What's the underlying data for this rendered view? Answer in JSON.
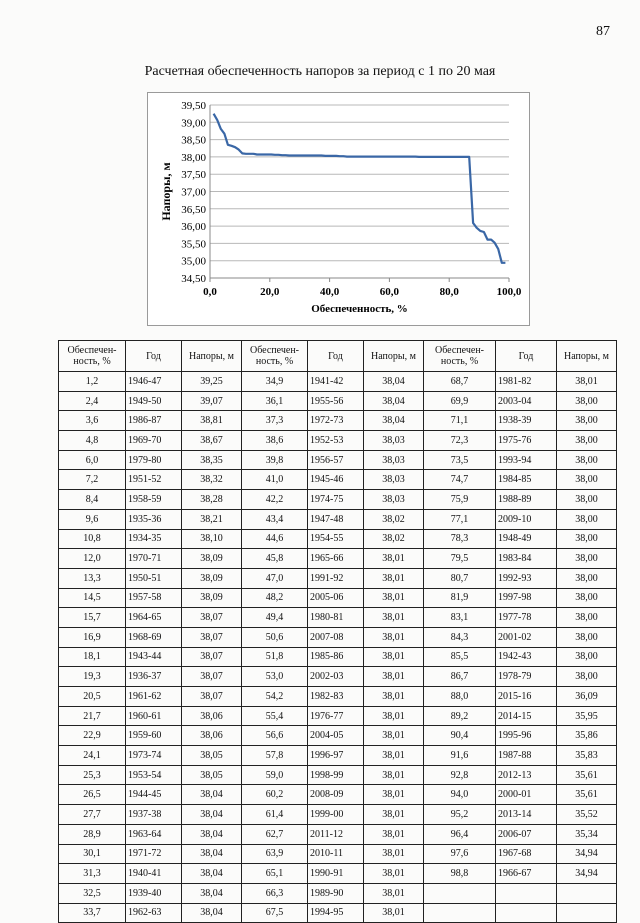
{
  "page": {
    "number": "87"
  },
  "chart_data": {
    "type": "line",
    "title": "Расчетная обеспеченность напоров за период с 1 по 20 мая",
    "xlabel": "Обеспеченность, %",
    "ylabel": "Напоры, м",
    "xlim": [
      0,
      100
    ],
    "ylim": [
      34.5,
      39.5
    ],
    "x_ticks": [
      "0,0",
      "20,0",
      "40,0",
      "60,0",
      "80,0",
      "100,0"
    ],
    "y_ticks": [
      "34,50",
      "35,00",
      "35,50",
      "36,00",
      "36,50",
      "37,00",
      "37,50",
      "38,00",
      "38,50",
      "39,00",
      "39,50"
    ],
    "grid": "horizontal",
    "color": "#3a67a6",
    "series": [
      {
        "points": [
          [
            1.2,
            39.25
          ],
          [
            2.4,
            39.07
          ],
          [
            3.6,
            38.81
          ],
          [
            4.8,
            38.67
          ],
          [
            6.0,
            38.35
          ],
          [
            7.2,
            38.32
          ],
          [
            8.4,
            38.28
          ],
          [
            9.6,
            38.21
          ],
          [
            10.8,
            38.1
          ],
          [
            12.0,
            38.09
          ],
          [
            13.3,
            38.09
          ],
          [
            14.5,
            38.09
          ],
          [
            15.7,
            38.07
          ],
          [
            16.9,
            38.07
          ],
          [
            18.1,
            38.07
          ],
          [
            19.3,
            38.07
          ],
          [
            20.5,
            38.07
          ],
          [
            21.7,
            38.06
          ],
          [
            22.9,
            38.06
          ],
          [
            24.1,
            38.05
          ],
          [
            25.3,
            38.05
          ],
          [
            26.5,
            38.04
          ],
          [
            27.7,
            38.04
          ],
          [
            28.9,
            38.04
          ],
          [
            30.1,
            38.04
          ],
          [
            31.3,
            38.04
          ],
          [
            32.5,
            38.04
          ],
          [
            33.7,
            38.04
          ],
          [
            34.9,
            38.04
          ],
          [
            36.1,
            38.04
          ],
          [
            37.3,
            38.04
          ],
          [
            38.6,
            38.03
          ],
          [
            39.8,
            38.03
          ],
          [
            41.0,
            38.03
          ],
          [
            42.2,
            38.03
          ],
          [
            43.4,
            38.02
          ],
          [
            44.6,
            38.02
          ],
          [
            45.8,
            38.01
          ],
          [
            47.0,
            38.01
          ],
          [
            48.2,
            38.01
          ],
          [
            49.4,
            38.01
          ],
          [
            50.6,
            38.01
          ],
          [
            51.8,
            38.01
          ],
          [
            53.0,
            38.01
          ],
          [
            54.2,
            38.01
          ],
          [
            55.4,
            38.01
          ],
          [
            56.6,
            38.01
          ],
          [
            57.8,
            38.01
          ],
          [
            59.0,
            38.01
          ],
          [
            60.2,
            38.01
          ],
          [
            61.4,
            38.01
          ],
          [
            62.7,
            38.01
          ],
          [
            63.9,
            38.01
          ],
          [
            65.1,
            38.01
          ],
          [
            66.3,
            38.01
          ],
          [
            67.5,
            38.01
          ],
          [
            68.7,
            38.01
          ],
          [
            69.9,
            38.0
          ],
          [
            71.1,
            38.0
          ],
          [
            72.3,
            38.0
          ],
          [
            73.5,
            38.0
          ],
          [
            74.7,
            38.0
          ],
          [
            75.9,
            38.0
          ],
          [
            77.1,
            38.0
          ],
          [
            78.3,
            38.0
          ],
          [
            79.5,
            38.0
          ],
          [
            80.7,
            38.0
          ],
          [
            81.9,
            38.0
          ],
          [
            83.1,
            38.0
          ],
          [
            84.3,
            38.0
          ],
          [
            85.5,
            38.0
          ],
          [
            86.7,
            38.0
          ],
          [
            88.0,
            36.09
          ],
          [
            89.2,
            35.95
          ],
          [
            90.4,
            35.86
          ],
          [
            91.6,
            35.83
          ],
          [
            92.8,
            35.61
          ],
          [
            94.0,
            35.61
          ],
          [
            95.2,
            35.52
          ],
          [
            96.4,
            35.34
          ],
          [
            97.6,
            34.94
          ],
          [
            98.8,
            34.94
          ]
        ]
      }
    ]
  },
  "table": {
    "headers": [
      "Обеспечен-ность, %",
      "Год",
      "Напоры, м",
      "Обеспечен-ность, %",
      "Год",
      "Напоры, м",
      "Обеспечен-ность, %",
      "Год",
      "Напоры, м"
    ],
    "rows": [
      [
        "1,2",
        "1946-47",
        "39,25",
        "34,9",
        "1941-42",
        "38,04",
        "68,7",
        "1981-82",
        "38,01"
      ],
      [
        "2,4",
        "1949-50",
        "39,07",
        "36,1",
        "1955-56",
        "38,04",
        "69,9",
        "2003-04",
        "38,00"
      ],
      [
        "3,6",
        "1986-87",
        "38,81",
        "37,3",
        "1972-73",
        "38,04",
        "71,1",
        "1938-39",
        "38,00"
      ],
      [
        "4,8",
        "1969-70",
        "38,67",
        "38,6",
        "1952-53",
        "38,03",
        "72,3",
        "1975-76",
        "38,00"
      ],
      [
        "6,0",
        "1979-80",
        "38,35",
        "39,8",
        "1956-57",
        "38,03",
        "73,5",
        "1993-94",
        "38,00"
      ],
      [
        "7,2",
        "1951-52",
        "38,32",
        "41,0",
        "1945-46",
        "38,03",
        "74,7",
        "1984-85",
        "38,00"
      ],
      [
        "8,4",
        "1958-59",
        "38,28",
        "42,2",
        "1974-75",
        "38,03",
        "75,9",
        "1988-89",
        "38,00"
      ],
      [
        "9,6",
        "1935-36",
        "38,21",
        "43,4",
        "1947-48",
        "38,02",
        "77,1",
        "2009-10",
        "38,00"
      ],
      [
        "10,8",
        "1934-35",
        "38,10",
        "44,6",
        "1954-55",
        "38,02",
        "78,3",
        "1948-49",
        "38,00"
      ],
      [
        "12,0",
        "1970-71",
        "38,09",
        "45,8",
        "1965-66",
        "38,01",
        "79,5",
        "1983-84",
        "38,00"
      ],
      [
        "13,3",
        "1950-51",
        "38,09",
        "47,0",
        "1991-92",
        "38,01",
        "80,7",
        "1992-93",
        "38,00"
      ],
      [
        "14,5",
        "1957-58",
        "38,09",
        "48,2",
        "2005-06",
        "38,01",
        "81,9",
        "1997-98",
        "38,00"
      ],
      [
        "15,7",
        "1964-65",
        "38,07",
        "49,4",
        "1980-81",
        "38,01",
        "83,1",
        "1977-78",
        "38,00"
      ],
      [
        "16,9",
        "1968-69",
        "38,07",
        "50,6",
        "2007-08",
        "38,01",
        "84,3",
        "2001-02",
        "38,00"
      ],
      [
        "18,1",
        "1943-44",
        "38,07",
        "51,8",
        "1985-86",
        "38,01",
        "85,5",
        "1942-43",
        "38,00"
      ],
      [
        "19,3",
        "1936-37",
        "38,07",
        "53,0",
        "2002-03",
        "38,01",
        "86,7",
        "1978-79",
        "38,00"
      ],
      [
        "20,5",
        "1961-62",
        "38,07",
        "54,2",
        "1982-83",
        "38,01",
        "88,0",
        "2015-16",
        "36,09"
      ],
      [
        "21,7",
        "1960-61",
        "38,06",
        "55,4",
        "1976-77",
        "38,01",
        "89,2",
        "2014-15",
        "35,95"
      ],
      [
        "22,9",
        "1959-60",
        "38,06",
        "56,6",
        "2004-05",
        "38,01",
        "90,4",
        "1995-96",
        "35,86"
      ],
      [
        "24,1",
        "1973-74",
        "38,05",
        "57,8",
        "1996-97",
        "38,01",
        "91,6",
        "1987-88",
        "35,83"
      ],
      [
        "25,3",
        "1953-54",
        "38,05",
        "59,0",
        "1998-99",
        "38,01",
        "92,8",
        "2012-13",
        "35,61"
      ],
      [
        "26,5",
        "1944-45",
        "38,04",
        "60,2",
        "2008-09",
        "38,01",
        "94,0",
        "2000-01",
        "35,61"
      ],
      [
        "27,7",
        "1937-38",
        "38,04",
        "61,4",
        "1999-00",
        "38,01",
        "95,2",
        "2013-14",
        "35,52"
      ],
      [
        "28,9",
        "1963-64",
        "38,04",
        "62,7",
        "2011-12",
        "38,01",
        "96,4",
        "2006-07",
        "35,34"
      ],
      [
        "30,1",
        "1971-72",
        "38,04",
        "63,9",
        "2010-11",
        "38,01",
        "97,6",
        "1967-68",
        "34,94"
      ],
      [
        "31,3",
        "1940-41",
        "38,04",
        "65,1",
        "1990-91",
        "38,01",
        "98,8",
        "1966-67",
        "34,94"
      ],
      [
        "32,5",
        "1939-40",
        "38,04",
        "66,3",
        "1989-90",
        "38,01",
        "",
        "",
        ""
      ],
      [
        "33,7",
        "1962-63",
        "38,04",
        "67,5",
        "1994-95",
        "38,01",
        "",
        "",
        ""
      ]
    ]
  }
}
